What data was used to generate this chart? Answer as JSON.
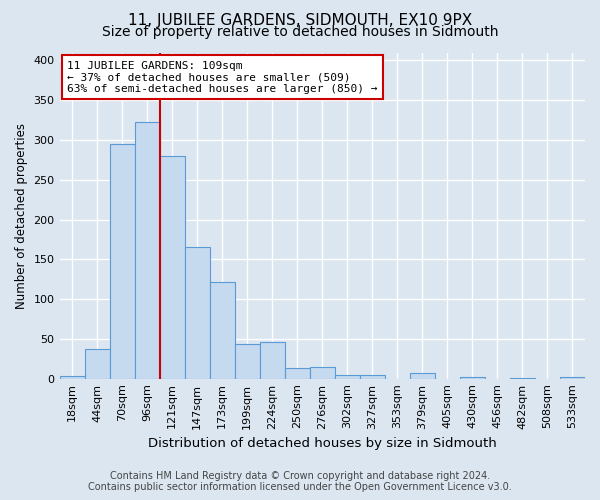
{
  "title": "11, JUBILEE GARDENS, SIDMOUTH, EX10 9PX",
  "subtitle": "Size of property relative to detached houses in Sidmouth",
  "xlabel": "Distribution of detached houses by size in Sidmouth",
  "ylabel": "Number of detached properties",
  "footer_line1": "Contains HM Land Registry data © Crown copyright and database right 2024.",
  "footer_line2": "Contains public sector information licensed under the Open Government Licence v3.0.",
  "bar_labels": [
    "18sqm",
    "44sqm",
    "70sqm",
    "96sqm",
    "121sqm",
    "147sqm",
    "173sqm",
    "199sqm",
    "224sqm",
    "250sqm",
    "276sqm",
    "302sqm",
    "327sqm",
    "353sqm",
    "379sqm",
    "405sqm",
    "430sqm",
    "456sqm",
    "482sqm",
    "508sqm",
    "533sqm"
  ],
  "bar_heights": [
    3,
    37,
    295,
    323,
    280,
    165,
    122,
    44,
    46,
    13,
    15,
    5,
    5,
    0,
    7,
    0,
    2,
    0,
    1,
    0,
    2
  ],
  "bar_color": "#c5d9ef",
  "bar_edge_color": "#5b9bd5",
  "annotation_box_text": "11 JUBILEE GARDENS: 109sqm\n← 37% of detached houses are smaller (509)\n63% of semi-detached houses are larger (850) →",
  "annotation_box_color": "white",
  "annotation_box_edge_color": "#cc0000",
  "vline_x": 3.5,
  "vline_color": "#cc0000",
  "ylim": [
    0,
    410
  ],
  "yticks": [
    0,
    50,
    100,
    150,
    200,
    250,
    300,
    350,
    400
  ],
  "background_color": "#dce6f1",
  "plot_background_color": "#dce6f1",
  "grid_color": "white",
  "title_fontsize": 11,
  "subtitle_fontsize": 10,
  "xlabel_fontsize": 9.5,
  "ylabel_fontsize": 8.5,
  "tick_fontsize": 8,
  "annot_fontsize": 8,
  "footer_fontsize": 7
}
